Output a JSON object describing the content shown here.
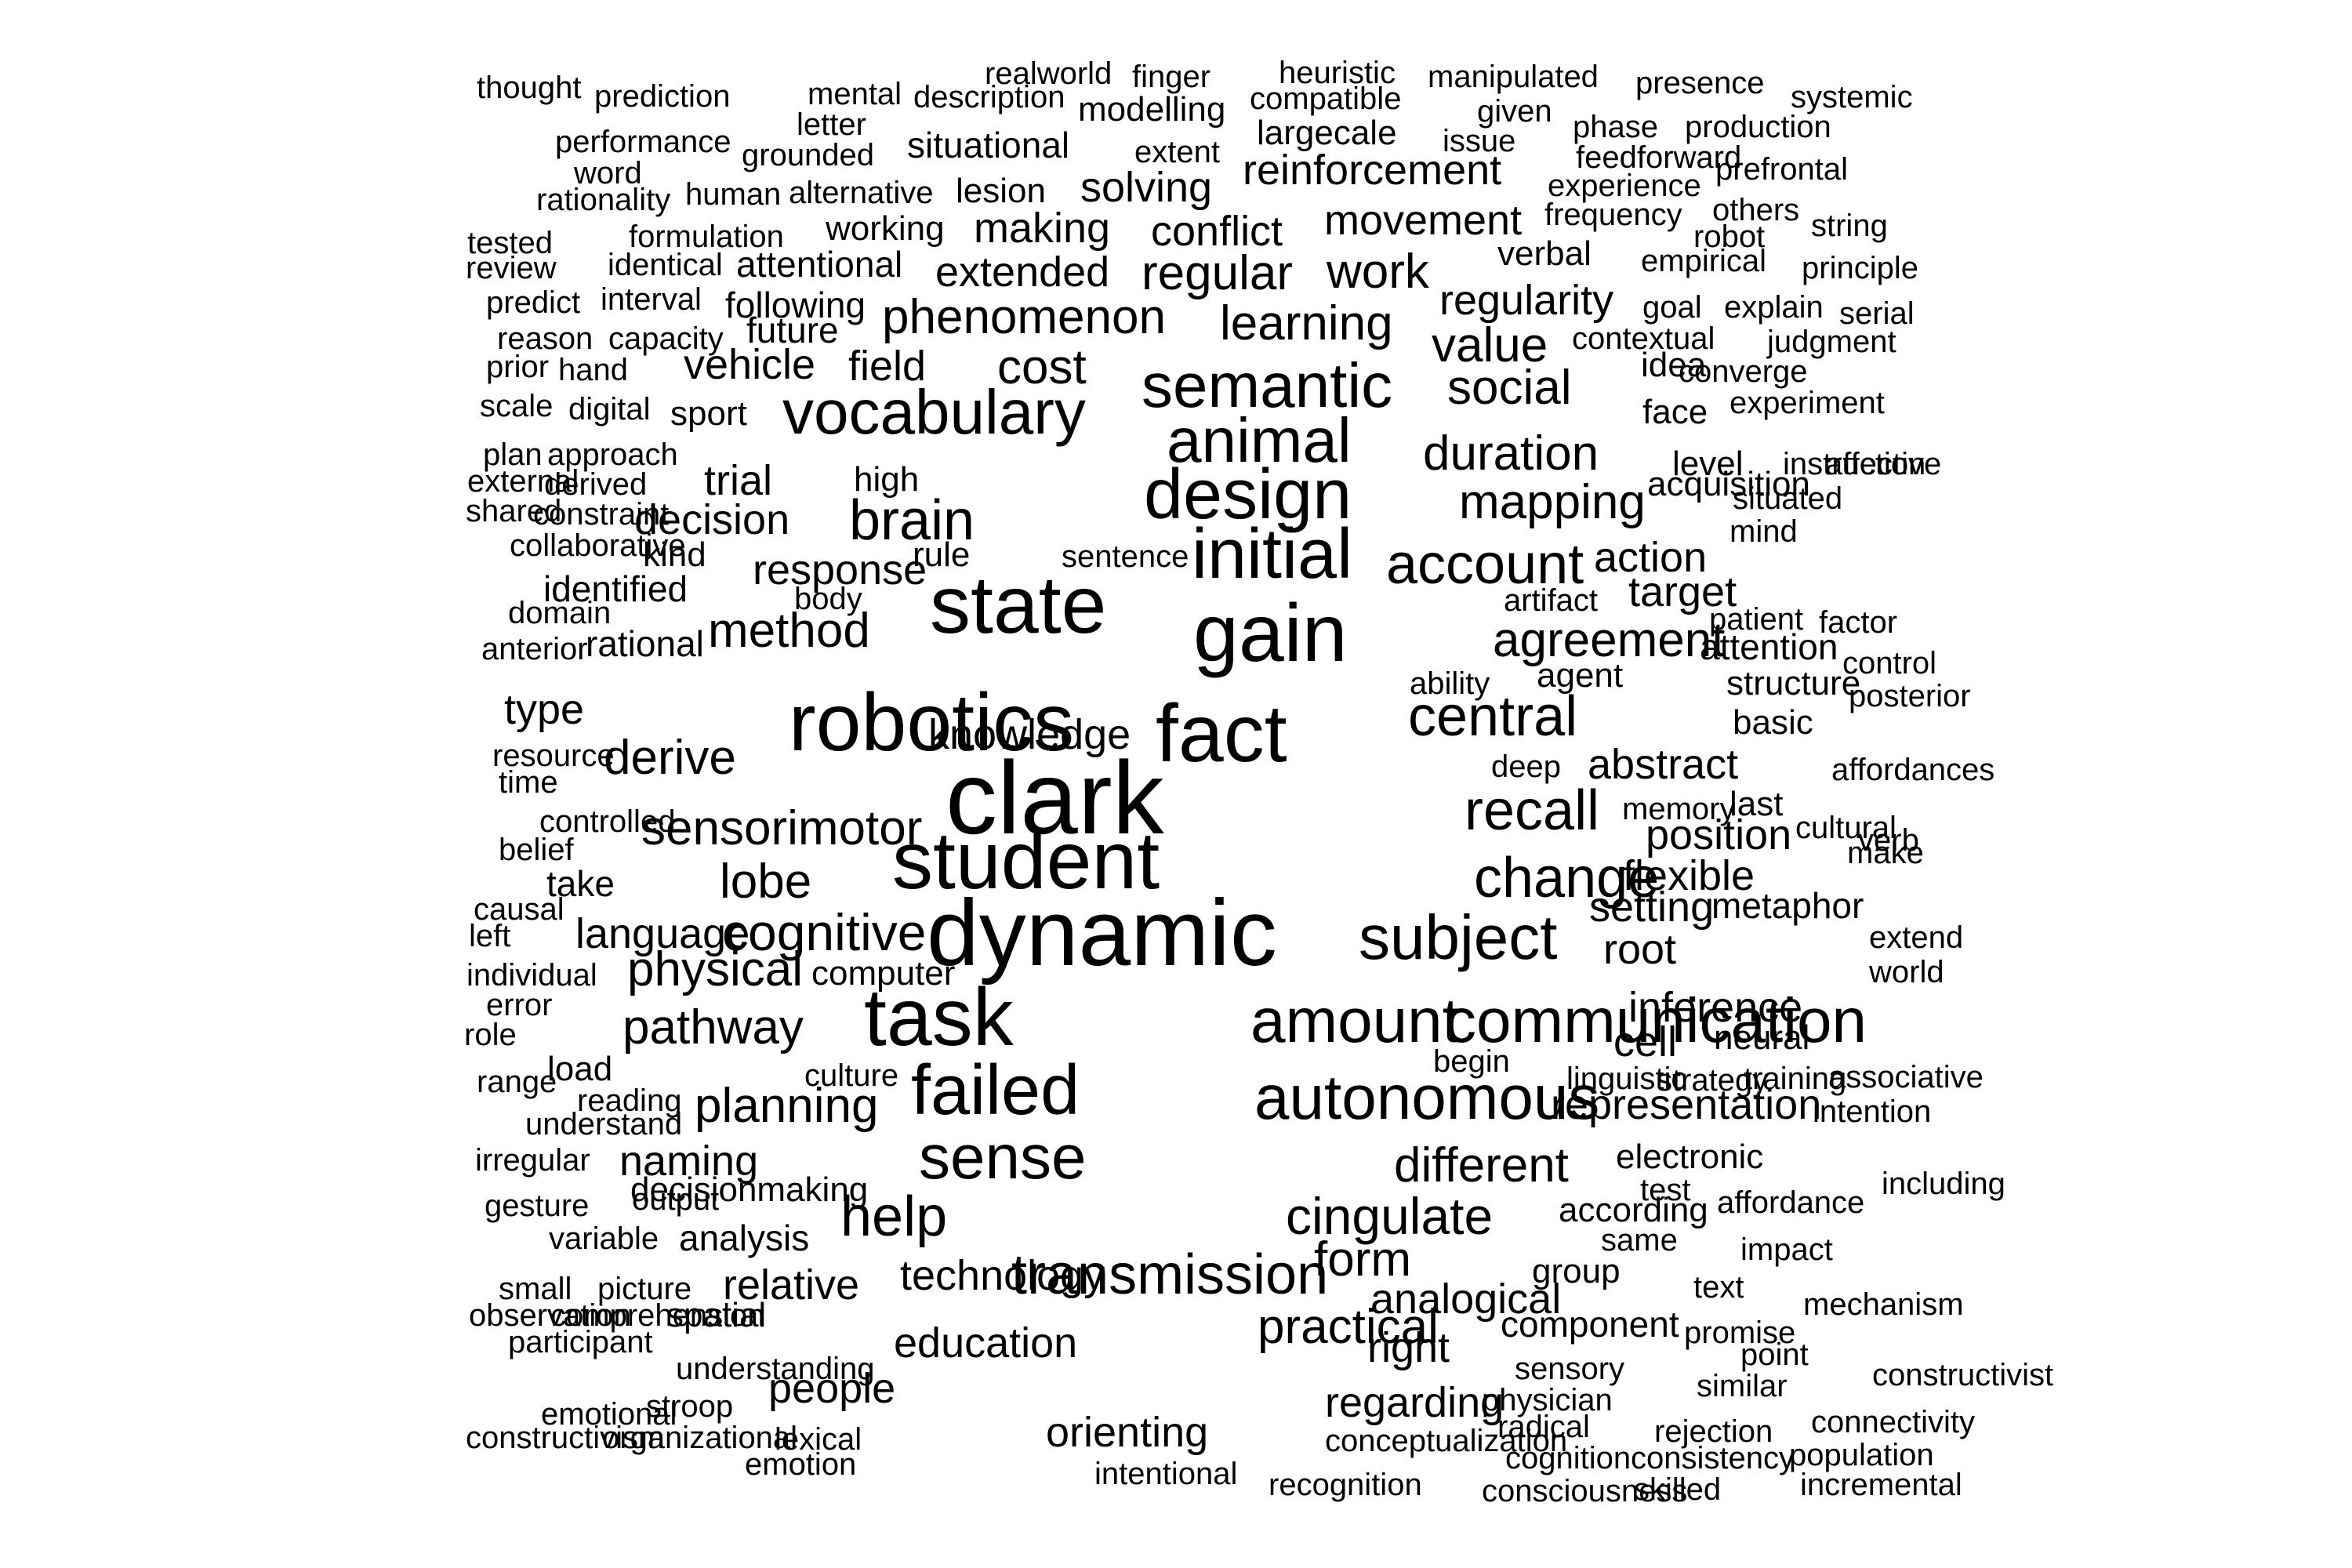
{
  "words": [
    "thought",
    "prediction",
    "mental",
    "realworld",
    "finger",
    "heuristic",
    "manipulated",
    "presence",
    "systemic",
    "description",
    "compatible",
    "modelling",
    "given",
    "letter",
    "phase",
    "production",
    "performance",
    "issue",
    "largecale",
    "extent",
    "grounded",
    "situational",
    "feedforward",
    "prefrontal",
    "word",
    "reinforcement",
    "experience",
    "rationality",
    "human",
    "alternative",
    "lesion",
    "solving",
    "others",
    "frequency",
    "string",
    "tested",
    "formulation",
    "working",
    "making",
    "conflict",
    "movement",
    "robot",
    "review",
    "identical",
    "attentional",
    "verbal",
    "empirical",
    "principle",
    "extended",
    "regular",
    "work",
    "predict",
    "interval",
    "following",
    "regularity",
    "goal",
    "explain",
    "serial",
    "reason",
    "capacity",
    "future",
    "phenomenon",
    "learning",
    "contextual",
    "judgment",
    "value",
    "prior",
    "hand",
    "vehicle",
    "field",
    "cost",
    "idea",
    "converge",
    "semantic",
    "social",
    "scale",
    "digital",
    "vocabulary",
    "face",
    "experiment",
    "sport",
    "animal",
    "plan",
    "approach",
    "duration",
    "level",
    "instruction",
    "affective",
    "external",
    "derived",
    "trial",
    "high",
    "acquisition",
    "shared",
    "constraint",
    "mapping",
    "situated",
    "design",
    "mind",
    "decision",
    "brain",
    "collaborative",
    "kind",
    "rule",
    "sentence",
    "action",
    "response",
    "initial",
    "identified",
    "account",
    "target",
    "body",
    "domain",
    "artifact",
    "state",
    "patient",
    "factor",
    "method",
    "rational",
    "gain",
    "anterior",
    "agreement",
    "attention",
    "control",
    "ability",
    "type",
    "agent",
    "structure",
    "posterior",
    "robotics",
    "central",
    "basic",
    "fact",
    "knowledge",
    "resource",
    "deep",
    "affordances",
    "derive",
    "abstract",
    "time",
    "clark",
    "memory",
    "last",
    "controlled",
    "recall",
    "cultural",
    "sensorimotor",
    "position",
    "belief",
    "verb",
    "student",
    "take",
    "lobe",
    "change",
    "flexible",
    "make",
    "causal",
    "setting",
    "metaphor",
    "left",
    "language",
    "cognitive",
    "subject",
    "root",
    "extend",
    "dynamic",
    "individual",
    "physical",
    "computer",
    "world",
    "error",
    "inference",
    "pathway",
    "role",
    "communication",
    "amount",
    "task",
    "neural",
    "cell",
    "load",
    "begin",
    "range",
    "culture",
    "linguistic",
    "strategy",
    "training",
    "associative",
    "reading",
    "failed",
    "autonomous",
    "planning",
    "understand",
    "representation",
    "intention",
    "electronic",
    "irregular",
    "naming",
    "sense",
    "different",
    "test",
    "decisionmaking",
    "affordance",
    "including",
    "gesture",
    "according",
    "output",
    "help",
    "cingulate",
    "variable",
    "analysis",
    "same",
    "impact",
    "technology",
    "form",
    "group",
    "relative",
    "small",
    "picture",
    "transmission",
    "text",
    "analogical",
    "mechanism",
    "observation",
    "comprehension",
    "spatial",
    "practical",
    "component",
    "promise",
    "participant",
    "education",
    "right",
    "point",
    "understanding",
    "sensory",
    "constructivist",
    "similar",
    "people",
    "regarding",
    "physician",
    "emotional",
    "stroop",
    "constructivism",
    "organizational",
    "radical",
    "connectivity",
    "lexical",
    "orienting",
    "rejection",
    "conceptualization",
    "cognition",
    "consistency",
    "population",
    "emotion",
    "intentional",
    "recognition",
    "skilled",
    "incremental",
    "consciousness"
  ]
}
